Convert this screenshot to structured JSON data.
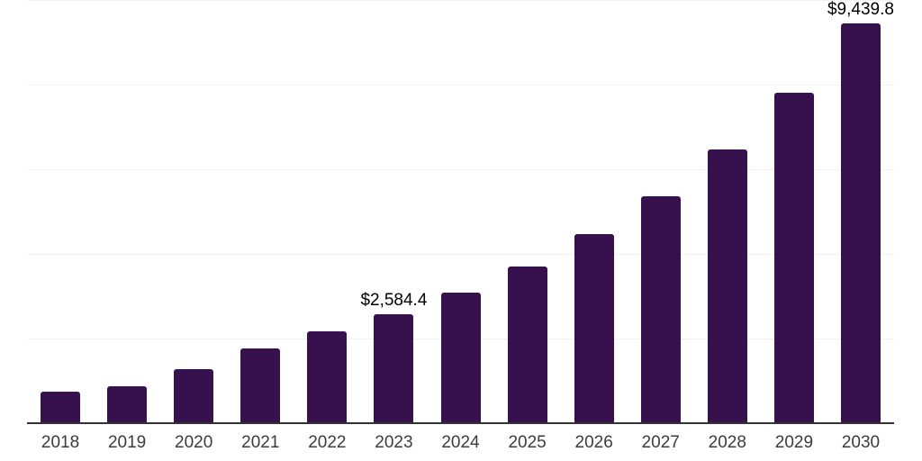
{
  "chart_data": {
    "type": "bar",
    "title": "",
    "xlabel": "",
    "ylabel": "",
    "categories": [
      "2018",
      "2019",
      "2020",
      "2021",
      "2022",
      "2023",
      "2024",
      "2025",
      "2026",
      "2027",
      "2028",
      "2029",
      "2030"
    ],
    "values": [
      745,
      870,
      1275,
      1770,
      2165,
      2584.4,
      3080,
      3700,
      4460,
      5370,
      6470,
      7810,
      9439.8
    ],
    "data_labels": [
      "",
      "",
      "",
      "",
      "",
      "$2,584.4",
      "",
      "",
      "",
      "",
      "",
      "",
      "$9,439.8"
    ],
    "ylim": [
      0,
      10000
    ],
    "gridline_step": 2000,
    "grid": true,
    "legend": false,
    "colors": {
      "bar": "#37114d",
      "axis_line": "#333333",
      "gridline": "#f2f2f2",
      "data_label": "#000000",
      "tick_label": "#3c3c3c",
      "background": "#ffffff"
    }
  }
}
